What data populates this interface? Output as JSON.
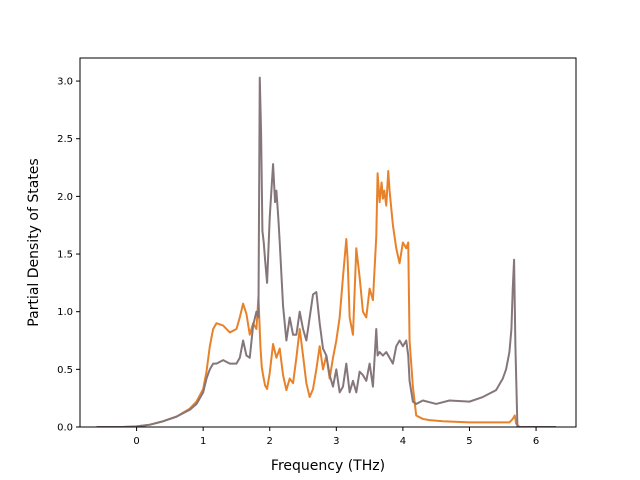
{
  "chart_data": {
    "type": "line",
    "xlabel": "Frequency (THz)",
    "ylabel": "Partial Density of States",
    "xlim": [
      -0.85,
      6.6
    ],
    "ylim": [
      0.0,
      3.2
    ],
    "xticks": [
      0,
      1,
      2,
      3,
      4,
      5,
      6
    ],
    "yticks": [
      0.0,
      0.5,
      1.0,
      1.5,
      2.0,
      2.5,
      3.0
    ],
    "xtick_labels": [
      "0",
      "1",
      "2",
      "3",
      "4",
      "5",
      "6"
    ],
    "ytick_labels": [
      "0.0",
      "0.5",
      "1.0",
      "1.5",
      "2.0",
      "2.5",
      "3.0"
    ],
    "grid": false,
    "series": [
      {
        "color": "#e8822a",
        "x": [
          -0.6,
          -0.2,
          0.0,
          0.2,
          0.4,
          0.6,
          0.8,
          0.9,
          1.0,
          1.05,
          1.1,
          1.15,
          1.2,
          1.3,
          1.4,
          1.5,
          1.55,
          1.6,
          1.65,
          1.7,
          1.75,
          1.8,
          1.83,
          1.86,
          1.88,
          1.9,
          1.93,
          1.96,
          2.0,
          2.05,
          2.1,
          2.15,
          2.2,
          2.25,
          2.3,
          2.35,
          2.4,
          2.45,
          2.5,
          2.55,
          2.6,
          2.65,
          2.7,
          2.75,
          2.8,
          2.85,
          2.9,
          2.95,
          3.0,
          3.05,
          3.1,
          3.15,
          3.17,
          3.2,
          3.25,
          3.3,
          3.35,
          3.4,
          3.45,
          3.5,
          3.55,
          3.6,
          3.62,
          3.65,
          3.68,
          3.7,
          3.72,
          3.75,
          3.78,
          3.8,
          3.85,
          3.9,
          3.95,
          4.0,
          4.05,
          4.08,
          4.1,
          4.15,
          4.2,
          4.3,
          4.4,
          4.6,
          5.0,
          5.4,
          5.6,
          5.65,
          5.68,
          5.7,
          5.75,
          6.3
        ],
        "y": [
          0.0,
          0.0,
          0.005,
          0.02,
          0.05,
          0.09,
          0.16,
          0.22,
          0.33,
          0.48,
          0.7,
          0.85,
          0.9,
          0.88,
          0.82,
          0.85,
          0.95,
          1.07,
          0.98,
          0.8,
          0.9,
          0.85,
          1.13,
          0.7,
          0.52,
          0.45,
          0.36,
          0.33,
          0.47,
          0.72,
          0.6,
          0.68,
          0.45,
          0.32,
          0.42,
          0.38,
          0.6,
          0.85,
          0.62,
          0.38,
          0.26,
          0.33,
          0.5,
          0.7,
          0.5,
          0.62,
          0.42,
          0.6,
          0.75,
          0.95,
          1.3,
          1.63,
          1.45,
          0.95,
          0.8,
          1.55,
          1.3,
          1.0,
          0.95,
          1.2,
          1.1,
          1.65,
          2.2,
          1.95,
          2.12,
          1.98,
          2.05,
          1.92,
          2.22,
          2.05,
          1.75,
          1.55,
          1.42,
          1.6,
          1.55,
          1.6,
          0.75,
          0.35,
          0.1,
          0.07,
          0.06,
          0.05,
          0.04,
          0.04,
          0.04,
          0.07,
          0.1,
          0.03,
          0.0,
          0.0
        ]
      },
      {
        "color": "#85767a",
        "x": [
          -0.6,
          -0.2,
          0.0,
          0.2,
          0.4,
          0.6,
          0.8,
          0.9,
          1.0,
          1.05,
          1.1,
          1.15,
          1.2,
          1.3,
          1.4,
          1.5,
          1.55,
          1.6,
          1.65,
          1.7,
          1.75,
          1.8,
          1.83,
          1.85,
          1.87,
          1.89,
          1.91,
          1.93,
          1.96,
          2.0,
          2.05,
          2.08,
          2.1,
          2.13,
          2.15,
          2.2,
          2.25,
          2.3,
          2.35,
          2.4,
          2.45,
          2.5,
          2.55,
          2.6,
          2.65,
          2.7,
          2.75,
          2.8,
          2.85,
          2.9,
          2.95,
          3.0,
          3.05,
          3.1,
          3.15,
          3.2,
          3.25,
          3.3,
          3.35,
          3.4,
          3.45,
          3.5,
          3.55,
          3.6,
          3.62,
          3.65,
          3.7,
          3.75,
          3.8,
          3.85,
          3.9,
          3.95,
          4.0,
          4.05,
          4.08,
          4.1,
          4.15,
          4.2,
          4.3,
          4.5,
          4.7,
          5.0,
          5.2,
          5.4,
          5.5,
          5.55,
          5.6,
          5.63,
          5.65,
          5.67,
          5.69,
          5.72,
          6.3
        ],
        "y": [
          0.0,
          0.0,
          0.005,
          0.02,
          0.05,
          0.09,
          0.15,
          0.2,
          0.3,
          0.42,
          0.5,
          0.55,
          0.55,
          0.58,
          0.55,
          0.55,
          0.6,
          0.75,
          0.62,
          0.6,
          0.88,
          1.0,
          0.95,
          3.03,
          2.55,
          1.7,
          1.6,
          1.45,
          1.25,
          1.82,
          2.28,
          1.95,
          2.05,
          1.8,
          1.6,
          1.05,
          0.75,
          0.95,
          0.8,
          0.8,
          1.0,
          0.85,
          0.75,
          0.95,
          1.15,
          1.17,
          0.9,
          0.68,
          0.62,
          0.45,
          0.35,
          0.5,
          0.3,
          0.35,
          0.55,
          0.3,
          0.4,
          0.3,
          0.48,
          0.45,
          0.4,
          0.55,
          0.35,
          0.85,
          0.62,
          0.65,
          0.62,
          0.65,
          0.6,
          0.55,
          0.7,
          0.75,
          0.7,
          0.75,
          0.62,
          0.4,
          0.22,
          0.2,
          0.23,
          0.2,
          0.23,
          0.22,
          0.26,
          0.32,
          0.42,
          0.5,
          0.65,
          0.85,
          1.2,
          1.45,
          0.7,
          0.0,
          0.0
        ]
      }
    ]
  }
}
